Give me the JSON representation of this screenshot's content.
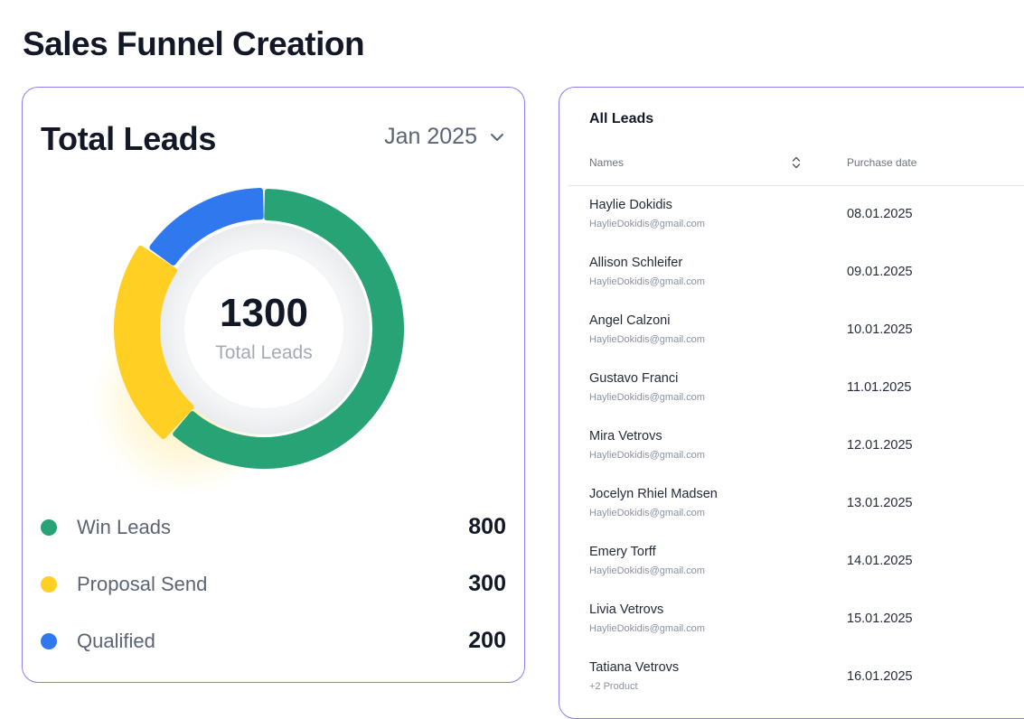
{
  "page": {
    "title": "Sales Funnel Creation"
  },
  "leads_card": {
    "title": "Total Leads",
    "period": "Jan 2025",
    "total_value": "1300",
    "total_caption": "Total Leads",
    "legend": [
      {
        "label": "Win Leads",
        "value": "800",
        "color": "#27a376"
      },
      {
        "label": "Proposal Send",
        "value": "300",
        "color": "#ffcf24"
      },
      {
        "label": "Qualified",
        "value": "200",
        "color": "#2f78ee"
      }
    ]
  },
  "chart_data": {
    "type": "pie",
    "title": "",
    "categories": [
      "Win Leads",
      "Proposal Send",
      "Qualified"
    ],
    "values": [
      800,
      300,
      200
    ],
    "colors": [
      "#27a376",
      "#ffcf24",
      "#2f78ee"
    ],
    "center_value": 1300,
    "legend": "bottom"
  },
  "table": {
    "title": "All Leads",
    "columns": {
      "names": "Names",
      "purchase_date": "Purchase date"
    },
    "rows": [
      {
        "name": "Haylie Dokidis",
        "email": "HaylieDokidis@gmail.com",
        "date": "08.01.2025"
      },
      {
        "name": "Allison Schleifer",
        "email": "HaylieDokidis@gmail.com",
        "date": "09.01.2025"
      },
      {
        "name": "Angel Calzoni",
        "email": "HaylieDokidis@gmail.com",
        "date": "10.01.2025"
      },
      {
        "name": "Gustavo Franci",
        "email": "HaylieDokidis@gmail.com",
        "date": "11.01.2025"
      },
      {
        "name": "Mira Vetrovs",
        "email": "HaylieDokidis@gmail.com",
        "date": "12.01.2025"
      },
      {
        "name": "Jocelyn Rhiel Madsen",
        "email": "HaylieDokidis@gmail.com",
        "date": "13.01.2025"
      },
      {
        "name": "Emery Torff",
        "email": "HaylieDokidis@gmail.com",
        "date": "14.01.2025"
      },
      {
        "name": "Livia Vetrovs",
        "email": "HaylieDokidis@gmail.com",
        "date": "15.01.2025"
      },
      {
        "name": "Tatiana Vetrovs",
        "email": "+2 Product",
        "date": "16.01.2025"
      }
    ]
  }
}
